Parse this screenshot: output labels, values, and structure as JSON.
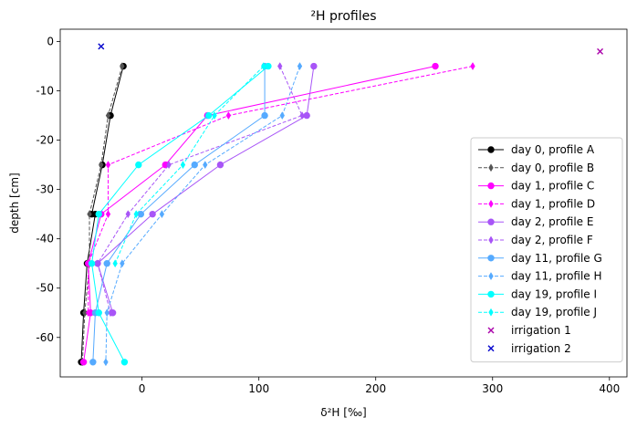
{
  "chart_data": {
    "type": "line",
    "title": "²H profiles",
    "xlabel": "δ²H [‰]",
    "ylabel": "depth [cm]",
    "xlim": [
      -70,
      415
    ],
    "ylim": [
      -68,
      2.5
    ],
    "xticks": [
      0,
      100,
      200,
      300,
      400
    ],
    "yticks": [
      0,
      -10,
      -20,
      -30,
      -40,
      -50,
      -60
    ],
    "grid": false,
    "legend_position": "lower-right",
    "series": [
      {
        "name": "day  0, profile A",
        "color": "#000000",
        "linestyle": "solid",
        "marker": "circle",
        "x": [
          -16,
          -27,
          -34,
          -43,
          -40,
          -47,
          -50,
          -52
        ],
        "y": [
          -5,
          -15,
          -25,
          -35,
          -35,
          -45,
          -55,
          -65
        ]
      },
      {
        "name": "day  0, profile B",
        "color": "#555555",
        "linestyle": "dashed",
        "marker": "diamond",
        "x": [
          -17,
          -29,
          -35,
          -45,
          -45,
          -49,
          -51
        ],
        "y": [
          -5,
          -15,
          -25,
          -35,
          -45,
          -55,
          -65
        ]
      },
      {
        "name": "day  1, profile C",
        "color": "#ff00ff",
        "linestyle": "solid",
        "marker": "circle",
        "x": [
          251,
          56,
          20,
          -35,
          -46,
          -44,
          -50
        ],
        "y": [
          -5,
          -15,
          -25,
          -35,
          -45,
          -55,
          -65
        ]
      },
      {
        "name": "day  1, profile D",
        "color": "#ff00ff",
        "linestyle": "dashed",
        "marker": "diamond",
        "x": [
          283,
          74,
          -29,
          -29,
          -46,
          -46
        ],
        "y": [
          -5,
          -15,
          -25,
          -35,
          -45,
          -55
        ]
      },
      {
        "name": "day  2, profile E",
        "color": "#a855f7",
        "linestyle": "solid",
        "marker": "circle",
        "x": [
          147,
          141,
          67,
          9,
          -38,
          -25
        ],
        "y": [
          -5,
          -15,
          -25,
          -35,
          -45,
          -55
        ]
      },
      {
        "name": "day  2, profile F",
        "color": "#a855f7",
        "linestyle": "dashed",
        "marker": "diamond",
        "x": [
          118,
          137,
          23,
          -12,
          -38,
          -27
        ],
        "y": [
          -5,
          -15,
          -25,
          -35,
          -45,
          -55
        ]
      },
      {
        "name": "day 11, profile G",
        "color": "#55aaff",
        "linestyle": "solid",
        "marker": "circle",
        "x": [
          105,
          105,
          45,
          -1,
          -30,
          -40,
          -42
        ],
        "y": [
          -5,
          -15,
          -25,
          -35,
          -45,
          -55,
          -65
        ]
      },
      {
        "name": "day 11, profile H",
        "color": "#55aaff",
        "linestyle": "dashed",
        "marker": "diamond",
        "x": [
          135,
          120,
          54,
          17,
          -17,
          -30,
          -31
        ],
        "y": [
          -5,
          -15,
          -25,
          -35,
          -45,
          -55,
          -65
        ]
      },
      {
        "name": "day 19, profile I",
        "color": "#00ffff",
        "linestyle": "solid",
        "marker": "circle",
        "x": [
          108,
          57,
          -3,
          -37,
          -43,
          -37,
          -15
        ],
        "y": [
          -5,
          -15,
          -25,
          -35,
          -45,
          -55,
          -65
        ]
      },
      {
        "name": "day 19, profile J",
        "color": "#00ffff",
        "linestyle": "dashed",
        "marker": "diamond",
        "x": [
          104,
          62,
          35,
          -5,
          -23
        ],
        "y": [
          -5,
          -15,
          -25,
          -35,
          -45
        ]
      },
      {
        "name": "irrigation 1",
        "color": "#aa00aa",
        "linestyle": "none",
        "marker": "x",
        "x": [
          392
        ],
        "y": [
          -2
        ]
      },
      {
        "name": "irrigation 2",
        "color": "#0000cc",
        "linestyle": "none",
        "marker": "x",
        "x": [
          -35
        ],
        "y": [
          -1
        ]
      }
    ]
  }
}
